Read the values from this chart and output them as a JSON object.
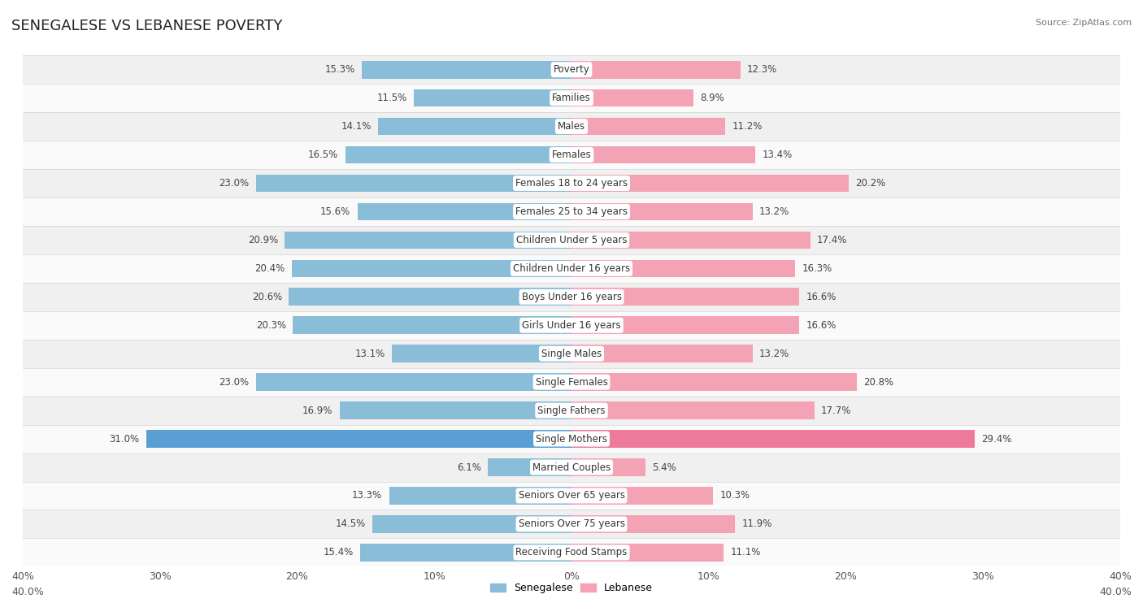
{
  "title": "SENEGALESE VS LEBANESE POVERTY",
  "source": "Source: ZipAtlas.com",
  "categories": [
    "Poverty",
    "Families",
    "Males",
    "Females",
    "Females 18 to 24 years",
    "Females 25 to 34 years",
    "Children Under 5 years",
    "Children Under 16 years",
    "Boys Under 16 years",
    "Girls Under 16 years",
    "Single Males",
    "Single Females",
    "Single Fathers",
    "Single Mothers",
    "Married Couples",
    "Seniors Over 65 years",
    "Seniors Over 75 years",
    "Receiving Food Stamps"
  ],
  "senegalese": [
    15.3,
    11.5,
    14.1,
    16.5,
    23.0,
    15.6,
    20.9,
    20.4,
    20.6,
    20.3,
    13.1,
    23.0,
    16.9,
    31.0,
    6.1,
    13.3,
    14.5,
    15.4
  ],
  "lebanese": [
    12.3,
    8.9,
    11.2,
    13.4,
    20.2,
    13.2,
    17.4,
    16.3,
    16.6,
    16.6,
    13.2,
    20.8,
    17.7,
    29.4,
    5.4,
    10.3,
    11.9,
    11.1
  ],
  "senegalese_color": "#89bdd8",
  "lebanese_color": "#f4a3b5",
  "single_mothers_senegalese_color": "#5a9fd4",
  "single_mothers_lebanese_color": "#ee7a9a",
  "axis_max": 40.0,
  "bar_height": 0.62,
  "row_bg_even": "#f0f0f0",
  "row_bg_odd": "#fafafa",
  "title_fontsize": 13,
  "label_fontsize": 8.5,
  "tick_fontsize": 9,
  "value_fontsize": 8.5,
  "legend_labels": [
    "Senegalese",
    "Lebanese"
  ]
}
